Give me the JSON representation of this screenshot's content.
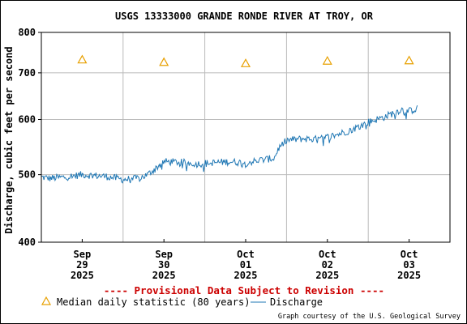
{
  "chart_data": {
    "type": "line",
    "title": "USGS 13333000 GRANDE RONDE RIVER AT TROY, OR",
    "ylabel": "Discharge, cubic feet per second",
    "xlabel": "",
    "y_scale": "log",
    "ylim": [
      400,
      800
    ],
    "y_ticks": [
      "800",
      "700",
      "600",
      "500",
      "400"
    ],
    "x_ticks": [
      {
        "month": "Sep",
        "day": "29",
        "year": "2025"
      },
      {
        "month": "Sep",
        "day": "30",
        "year": "2025"
      },
      {
        "month": "Oct",
        "day": "01",
        "year": "2025"
      },
      {
        "month": "Oct",
        "day": "02",
        "year": "2025"
      },
      {
        "month": "Oct",
        "day": "03",
        "year": "2025"
      }
    ],
    "grid": true,
    "x_range_days": [
      0,
      5
    ],
    "colors": {
      "discharge": "#1f77b4",
      "median": "#e8a000",
      "provisional": "#cc0000",
      "grid": "#bbbbbb"
    },
    "series": [
      {
        "name": "Median daily statistic (80 years)",
        "marker": "triangle",
        "points": [
          [
            0.5,
            731
          ],
          [
            1.5,
            725
          ],
          [
            2.5,
            722
          ],
          [
            3.5,
            728
          ],
          [
            4.5,
            729
          ]
        ]
      },
      {
        "name": "Discharge",
        "keypoints": [
          [
            0.0,
            496
          ],
          [
            0.1,
            494
          ],
          [
            0.3,
            496
          ],
          [
            0.5,
            500
          ],
          [
            0.8,
            497
          ],
          [
            1.0,
            492
          ],
          [
            1.2,
            494
          ],
          [
            1.3,
            500
          ],
          [
            1.4,
            511
          ],
          [
            1.5,
            522
          ],
          [
            1.7,
            521
          ],
          [
            1.9,
            518
          ],
          [
            2.1,
            520
          ],
          [
            2.3,
            522
          ],
          [
            2.5,
            520
          ],
          [
            2.7,
            525
          ],
          [
            2.85,
            528
          ],
          [
            2.9,
            545
          ],
          [
            3.0,
            560
          ],
          [
            3.2,
            563
          ],
          [
            3.4,
            562
          ],
          [
            3.6,
            570
          ],
          [
            3.8,
            580
          ],
          [
            4.0,
            595
          ],
          [
            4.2,
            605
          ],
          [
            4.4,
            620
          ],
          [
            4.5,
            617
          ],
          [
            4.6,
            622
          ]
        ]
      }
    ],
    "footer": {
      "provisional": "---- Provisional Data Subject to Revision ----",
      "legend_median": "Median daily statistic (80 years)",
      "legend_discharge": "Discharge",
      "credit": "Graph courtesy of the U.S. Geological Survey"
    }
  }
}
